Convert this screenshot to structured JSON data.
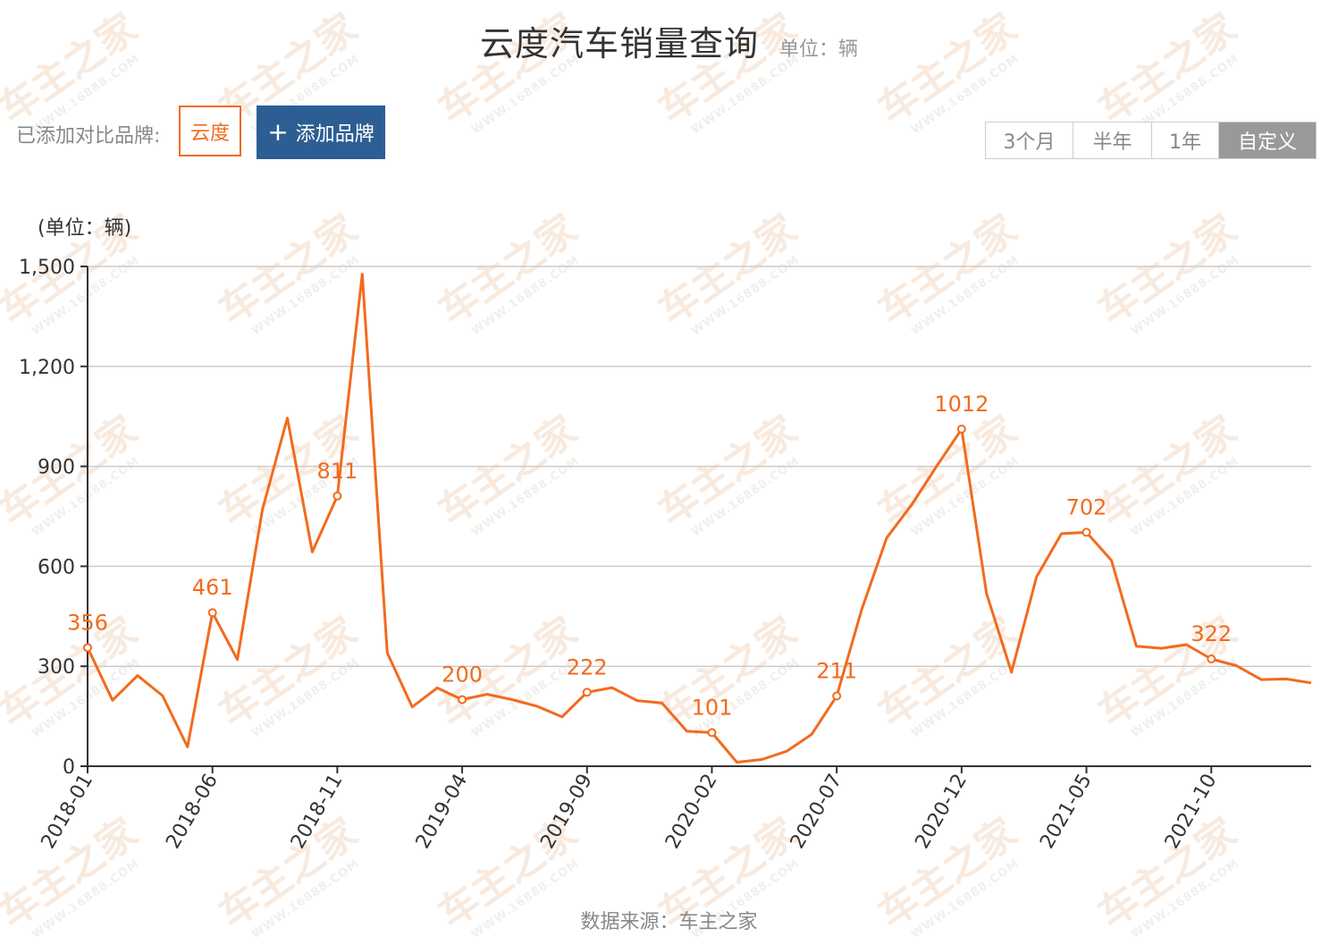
{
  "header": {
    "title": "云度汽车销量查询",
    "unit": "单位：辆"
  },
  "brands": {
    "label": "已添加对比品牌:",
    "items": [
      "云度"
    ],
    "add_label": "添加品牌"
  },
  "ranges": {
    "items": [
      "3个月",
      "半年",
      "1年",
      "自定义"
    ],
    "active": "自定义"
  },
  "watermark": {
    "text": "车主之家",
    "sub": "WWW.16888.COM"
  },
  "footer": {
    "source": "数据来源：车主之家"
  },
  "colors": {
    "line": "#f26b1d",
    "axis": "#333333",
    "grid": "#cccccc",
    "button": "#2c5e93"
  },
  "chart_data": {
    "type": "line",
    "ylabel": "(单位：辆)",
    "ylim": [
      0,
      1500
    ],
    "yticks": [
      0,
      300,
      600,
      900,
      1200,
      1500
    ],
    "ytick_labels": [
      "0",
      "300",
      "600",
      "900",
      "1,200",
      "1,500"
    ],
    "xtick_labels": [
      "2018-01",
      "2018-06",
      "2018-11",
      "2019-04",
      "2019-09",
      "2020-02",
      "2020-07",
      "2020-12",
      "2021-05",
      "2021-10"
    ],
    "grid": true,
    "series": [
      {
        "values": [
          356,
          198,
          272,
          212,
          58,
          461,
          320,
          770,
          1045,
          643,
          811,
          1477,
          340,
          178,
          235,
          200,
          216,
          200,
          180,
          148,
          222,
          236,
          197,
          190,
          105,
          101,
          12,
          20,
          45,
          96,
          211,
          470,
          685,
          785,
          900,
          1012,
          518,
          282,
          568,
          698,
          702,
          618,
          360,
          354,
          365,
          322,
          302,
          260,
          262,
          250
        ],
        "labels": [
          {
            "x": "2018-01",
            "value": 356
          },
          {
            "x": "2018-06",
            "value": 461
          },
          {
            "x": "2018-11",
            "value": 811
          },
          {
            "x": "2019-04",
            "value": 200
          },
          {
            "x": "2019-09",
            "value": 222
          },
          {
            "x": "2020-02",
            "value": 101
          },
          {
            "x": "2020-07",
            "value": 211
          },
          {
            "x": "2020-12",
            "value": 1012
          },
          {
            "x": "2021-05",
            "value": 702
          },
          {
            "x": "2021-10",
            "value": 322
          }
        ]
      }
    ]
  }
}
